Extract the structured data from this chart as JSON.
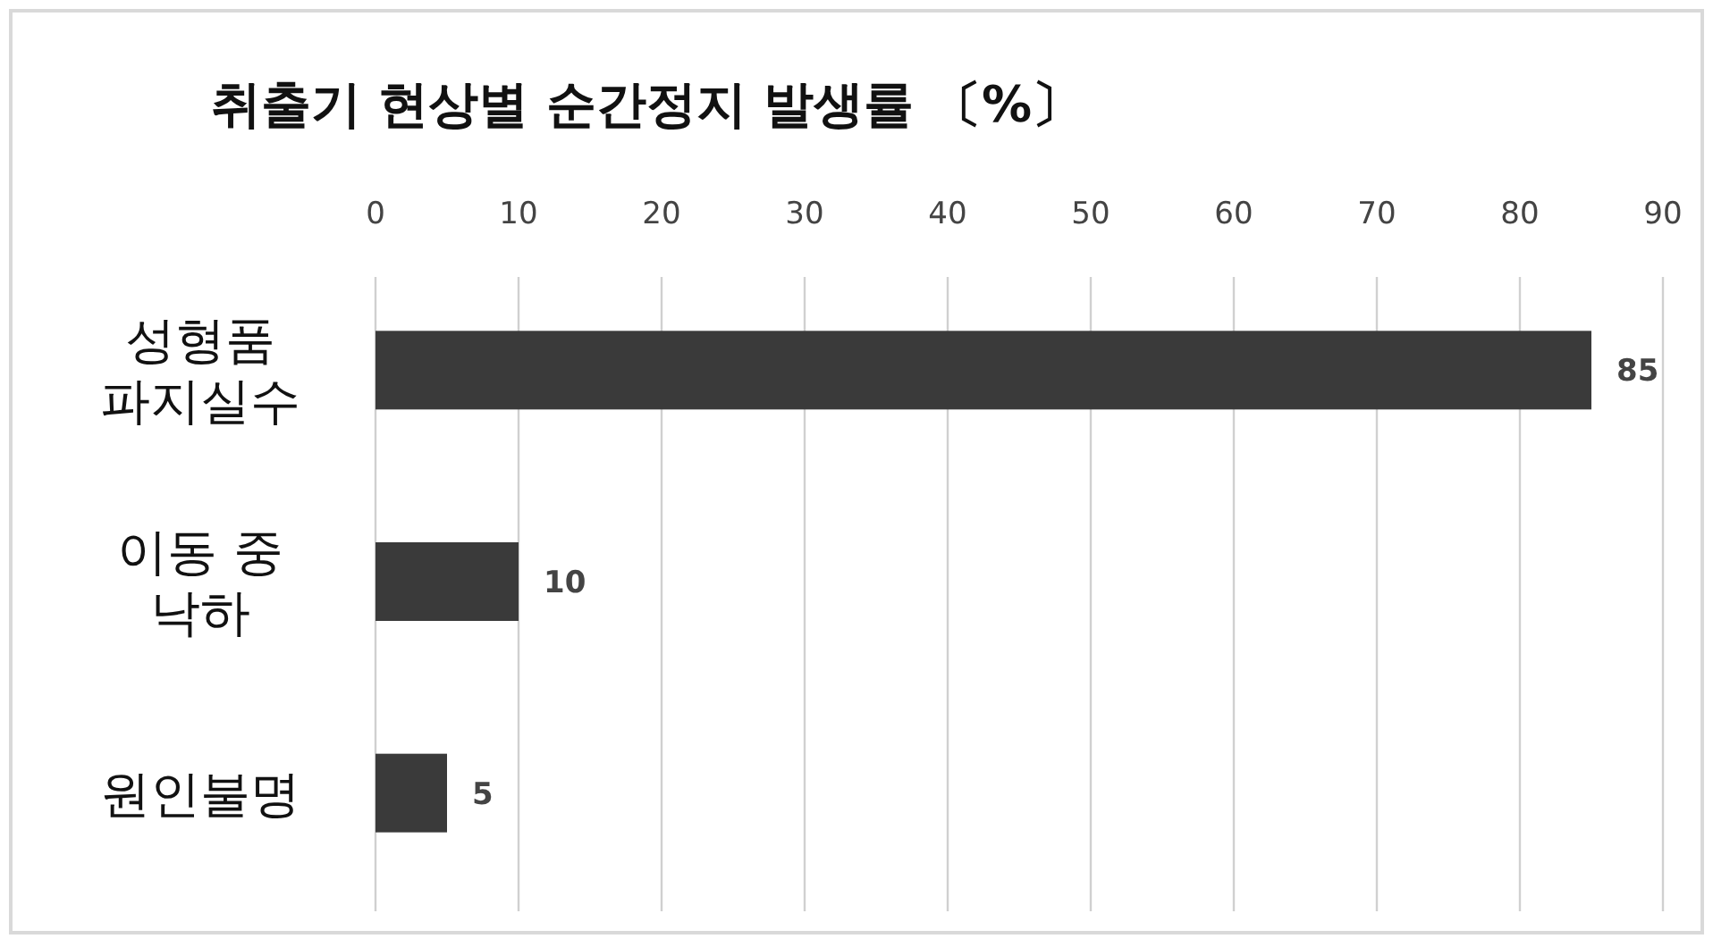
{
  "chart_data": {
    "type": "bar",
    "orientation": "horizontal",
    "title": "취출기 현상별 순간정지 발생률 〔%〕",
    "categories": [
      "성형품 파지실수",
      "이동 중 낙하",
      "원인불명"
    ],
    "values": [
      85,
      10,
      5
    ],
    "color": "#3a3a3a",
    "xlim": [
      0,
      90
    ],
    "xticks": [
      0,
      10,
      20,
      30,
      40,
      50,
      60,
      70,
      80,
      90
    ],
    "grid": "x",
    "data_labels": true
  }
}
